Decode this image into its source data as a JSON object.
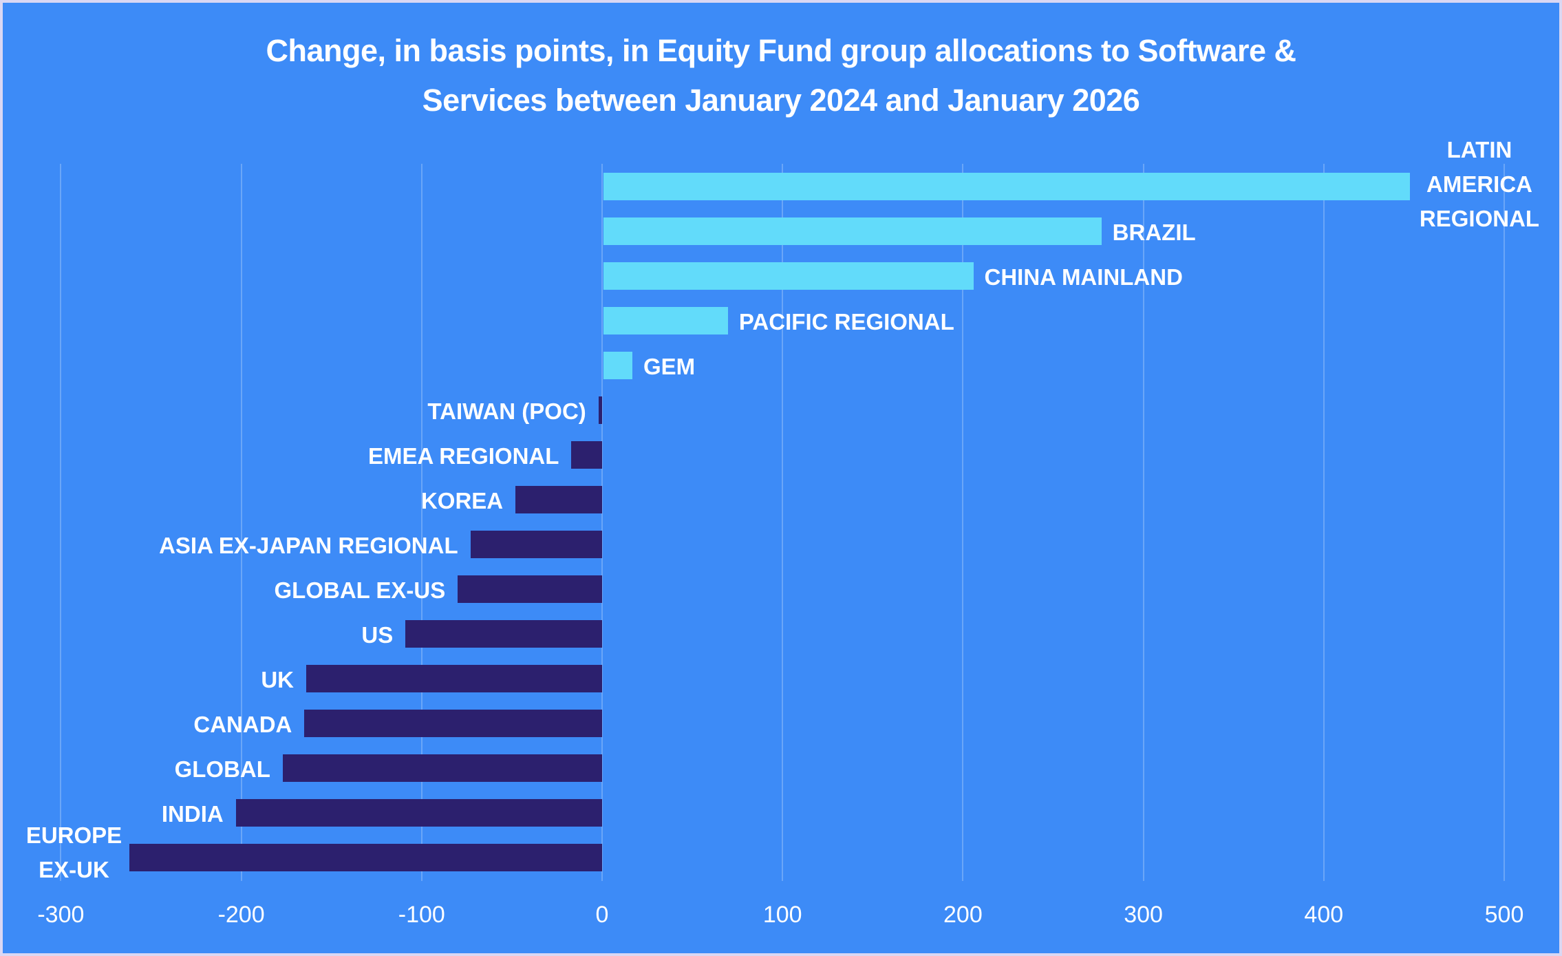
{
  "chart_data": {
    "type": "bar",
    "orientation": "horizontal",
    "title": "Change, in basis points, in Equity Fund group allocations to Software & Services between January 2024 and January 2026",
    "title_lines": [
      "Change, in basis points, in Equity Fund group allocations to Software &",
      "Services between January 2024 and January 2026"
    ],
    "xlabel": "",
    "ylabel": "",
    "xlim": [
      -300,
      500
    ],
    "xticks": [
      "-300",
      "-200",
      "-100",
      "0",
      "100",
      "200",
      "300",
      "400",
      "500"
    ],
    "grid": true,
    "legend": null,
    "categories": [
      "LATIN AMERICA REGIONAL",
      "BRAZIL",
      "CHINA MAINLAND",
      "PACIFIC REGIONAL",
      "GEM",
      "TAIWAN (POC)",
      "EMEA REGIONAL",
      "KOREA",
      "ASIA EX-JAPAN REGIONAL",
      "GLOBAL EX-US",
      "US",
      "UK",
      "CANADA",
      "GLOBAL",
      "INDIA",
      "EUROPE EX-UK"
    ],
    "values": [
      447,
      276,
      205,
      69,
      16,
      -2,
      -17,
      -48,
      -73,
      -80,
      -109,
      -164,
      -165,
      -177,
      -203,
      -262
    ],
    "colors": {
      "positive": "#62dbfa",
      "negative": "#2c206e",
      "background": "#3d8bf7",
      "gridline": "#6aa6f8"
    }
  },
  "labels": {
    "latin": [
      "LATIN",
      "AMERICA",
      "REGIONAL"
    ],
    "europe": [
      "EUROPE",
      "EX-UK"
    ]
  }
}
